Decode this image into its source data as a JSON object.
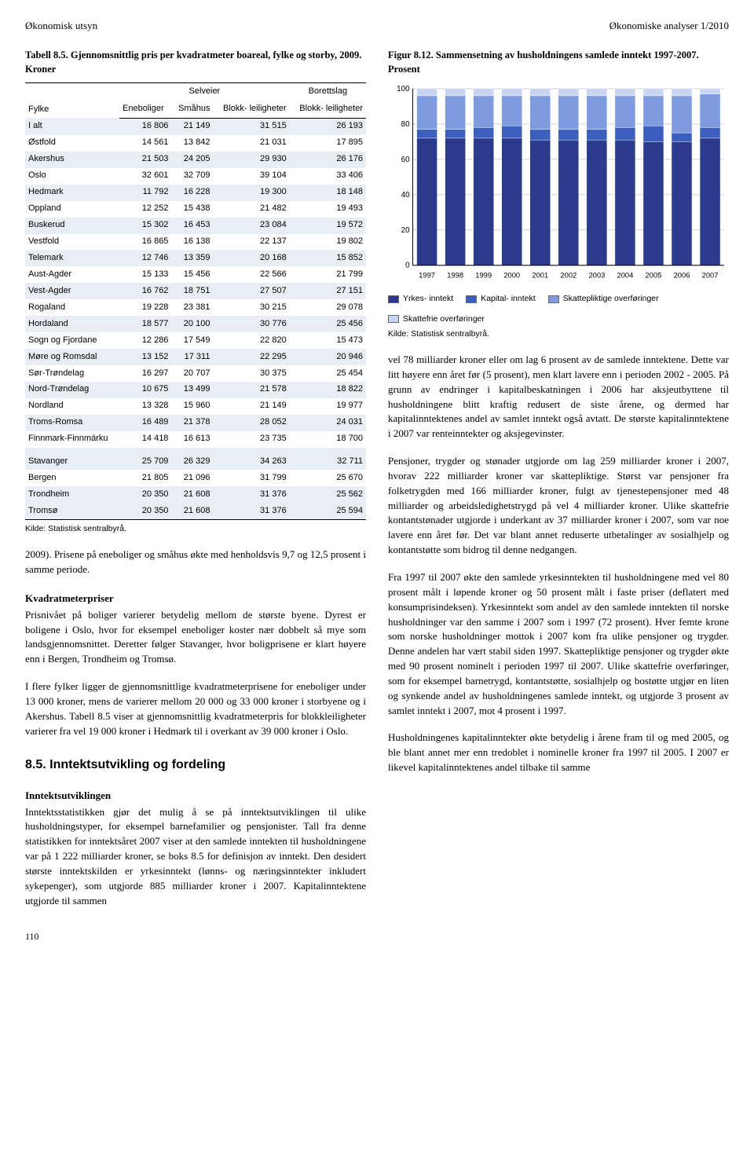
{
  "header": {
    "left": "Økonomisk utsyn",
    "right": "Økonomiske analyser 1/2010"
  },
  "table": {
    "title": "Tabell 8.5. Gjennomsnittlig pris per kvadratmeter boareal, fylke og storby, 2009. Kroner",
    "col_fylke": "Fylke",
    "group_sel": "Selveier",
    "group_bor": "Borettslag",
    "sub_ene": "Eneboliger",
    "sub_sma": "Småhus",
    "sub_blk1": "Blokk-\nleiligheter",
    "sub_blk2": "Blokk-\nleiligheter",
    "rows": [
      {
        "n": "I alt",
        "v": [
          "16 806",
          "21 149",
          "31 515",
          "26 193"
        ],
        "s": true
      },
      {
        "n": "Østfold",
        "v": [
          "14 561",
          "13 842",
          "21 031",
          "17 895"
        ]
      },
      {
        "n": "Akershus",
        "v": [
          "21 503",
          "24 205",
          "29 930",
          "26 176"
        ],
        "s": true
      },
      {
        "n": "Oslo",
        "v": [
          "32 601",
          "32 709",
          "39 104",
          "33 406"
        ]
      },
      {
        "n": "Hedmark",
        "v": [
          "11 792",
          "16 228",
          "19 300",
          "18 148"
        ],
        "s": true
      },
      {
        "n": "Oppland",
        "v": [
          "12 252",
          "15 438",
          "21 482",
          "19 493"
        ]
      },
      {
        "n": "Buskerud",
        "v": [
          "15 302",
          "16 453",
          "23 084",
          "19 572"
        ],
        "s": true
      },
      {
        "n": "Vestfold",
        "v": [
          "16 865",
          "16 138",
          "22 137",
          "19 802"
        ]
      },
      {
        "n": "Telemark",
        "v": [
          "12 746",
          "13 359",
          "20 168",
          "15 852"
        ],
        "s": true
      },
      {
        "n": "Aust-Agder",
        "v": [
          "15 133",
          "15 456",
          "22 566",
          "21 799"
        ]
      },
      {
        "n": "Vest-Agder",
        "v": [
          "16 762",
          "18 751",
          "27 507",
          "27 151"
        ],
        "s": true
      },
      {
        "n": "Rogaland",
        "v": [
          "19 228",
          "23 381",
          "30 215",
          "29 078"
        ]
      },
      {
        "n": "Hordaland",
        "v": [
          "18 577",
          "20 100",
          "30 776",
          "25 456"
        ],
        "s": true
      },
      {
        "n": "Sogn og Fjordane",
        "v": [
          "12 286",
          "17 549",
          "22 820",
          "15 473"
        ]
      },
      {
        "n": "Møre og Romsdal",
        "v": [
          "13 152",
          "17 311",
          "22 295",
          "20 946"
        ],
        "s": true
      },
      {
        "n": "Sør-Trøndelag",
        "v": [
          "16 297",
          "20 707",
          "30 375",
          "25 454"
        ]
      },
      {
        "n": "Nord-Trøndelag",
        "v": [
          "10 675",
          "13 499",
          "21 578",
          "18 822"
        ],
        "s": true
      },
      {
        "n": "Nordland",
        "v": [
          "13 328",
          "15 960",
          "21 149",
          "19 977"
        ]
      },
      {
        "n": "Troms-Romsa",
        "v": [
          "16 489",
          "21 378",
          "28 052",
          "24 031"
        ],
        "s": true
      },
      {
        "n": "Finnmark-Finnmárku",
        "v": [
          "14 418",
          "16 613",
          "23 735",
          "18 700"
        ]
      }
    ],
    "rows2": [
      {
        "n": "Stavanger",
        "v": [
          "25 709",
          "26 329",
          "34 263",
          "32 711"
        ],
        "s": true
      },
      {
        "n": "Bergen",
        "v": [
          "21 805",
          "21 096",
          "31 799",
          "25 670"
        ]
      },
      {
        "n": "Trondheim",
        "v": [
          "20 350",
          "21 608",
          "31 376",
          "25 562"
        ],
        "s": true
      },
      {
        "n": "Tromsø",
        "v": [
          "20 350",
          "21 608",
          "31 376",
          "25 594"
        ],
        "s": true,
        "last": true
      }
    ],
    "source": "Kilde: Statistisk sentralbyrå."
  },
  "left_paras": {
    "p1": "2009). Prisene på eneboliger og småhus økte med henholdsvis 9,7 og 12,5 prosent i samme periode.",
    "h1": "Kvadratmeterpriser",
    "p2": "Prisnivået på boliger varierer betydelig mellom de største byene. Dyrest er boligene i Oslo, hvor for eksempel eneboliger koster nær dobbelt så mye som landsgjennomsnittet. Deretter følger Stavanger, hvor boligprisene er klart høyere enn i Bergen, Trondheim og Tromsø.",
    "p3": "I flere fylker ligger de gjennomsnittlige kvadratmeterprisene for eneboliger under 13 000 kroner, mens de varierer mellom 20 000 og 33 000 kroner i storbyene og i Akershus. Tabell 8.5 viser at gjennomsnittlig kvadratmeterpris for blokkleiligheter varierer fra vel 19 000 kroner i Hedmark til i overkant av 39 000 kroner i Oslo.",
    "sec": "8.5.  Inntektsutvikling og fordeling",
    "h2": "Inntektsutviklingen",
    "p4": "Inntektsstatistikken gjør det mulig å se på inntektsutviklingen til ulike husholdningstyper, for eksempel barnefamilier og pensjonister. Tall fra denne statistikken for inntektsåret 2007 viser at den samlede inntekten til husholdningene var på 1 222 milliarder kroner, se boks 8.5 for definisjon av inntekt. Den desidert største inntektskilden er yrkesinntekt (lønns- og næringsinntekter inkludert sykepenger), som utgjorde 885 milliarder kroner i 2007. Kapitalinntektene utgjorde til sammen"
  },
  "figure": {
    "title": "Figur 8.12. Sammensetning av husholdningens samlede inntekt 1997-2007. Prosent",
    "years": [
      "1997",
      "1998",
      "1999",
      "2000",
      "2001",
      "2002",
      "2003",
      "2004",
      "2005",
      "2006",
      "2007"
    ],
    "ylim": [
      0,
      100
    ],
    "ytick_step": 20,
    "bg": "#ffffff",
    "grid": "#d0d0d0",
    "bar_width": 0.72,
    "series": [
      {
        "name": "Yrkes-\ninntekt",
        "color": "#2b3a8c",
        "values": [
          72,
          72,
          72,
          72,
          71,
          71,
          71,
          71,
          70,
          70,
          72
        ]
      },
      {
        "name": "Kapital-\ninntekt",
        "color": "#3b5fbf",
        "values": [
          5,
          5,
          6,
          7,
          6,
          6,
          6,
          7,
          9,
          5,
          6
        ]
      },
      {
        "name": "Skattepliktige\noverføringer",
        "color": "#7f9be0",
        "values": [
          19,
          19,
          18,
          17,
          19,
          19,
          19,
          18,
          17,
          21,
          19
        ]
      },
      {
        "name": "Skattefrie\noverføringer",
        "color": "#c9d5f2",
        "values": [
          4,
          4,
          4,
          4,
          4,
          4,
          4,
          4,
          4,
          4,
          3
        ]
      }
    ],
    "source": "Kilde: Statistisk sentralbyrå."
  },
  "right_paras": {
    "p1": "vel 78 milliarder kroner eller om lag 6 prosent av de samlede inntektene. Dette var litt høyere enn året før (5 prosent), men klart lavere enn i perioden 2002 - 2005. På grunn av endringer i kapitalbeskatningen i 2006 har aksjeutbyttene til husholdningene blitt kraftig redusert de siste årene, og dermed har kapitalinntektenes andel av samlet inntekt også avtatt. De største kapitalinntektene i 2007 var renteinntekter og aksjegevinster.",
    "p2": "Pensjoner, trygder og stønader utgjorde om lag 259 milliarder kroner i 2007, hvorav 222 milliarder kroner var skattepliktige. Størst var pensjoner fra folketrygden med 166 milliarder kroner, fulgt av tjenestepensjoner med 48 milliarder og arbeidsledighetstrygd på vel 4 milliarder kroner. Ulike skattefrie kontantstønader utgjorde i underkant av 37 milliarder kroner i 2007, som var noe lavere enn året før. Det var blant annet reduserte utbetalinger av sosialhjelp og kontantstøtte som bidrog til denne nedgangen.",
    "p3": "Fra 1997 til 2007 økte den samlede yrkesinntekten til husholdningene med vel 80 prosent målt i løpende kroner og 50 prosent målt i faste priser (deflatert med konsumprisindeksen). Yrkesinntekt som andel av den samlede inntekten til norske husholdninger var den samme i 2007 som i 1997 (72 prosent). Hver femte krone som norske husholdninger mottok i 2007 kom fra ulike pensjoner og trygder. Denne andelen har vært stabil siden 1997. Skattepliktige pensjoner og trygder økte med 90 prosent nominelt i perioden 1997 til 2007. Ulike skattefrie overføringer, som for eksempel barnetrygd, kontantstøtte, sosialhjelp og bostøtte utgjør en liten og synkende andel av husholdningenes samlede inntekt, og utgjorde 3 prosent av samlet inntekt i 2007, mot 4 prosent i 1997.",
    "p4": "Husholdningenes kapitalinntekter økte betydelig i årene fram til og med 2005, og ble blant annet mer enn tredoblet i nominelle kroner fra 1997 til 2005. I 2007 er likevel kapitalinntektenes andel tilbake til samme"
  },
  "pagenum": "110"
}
